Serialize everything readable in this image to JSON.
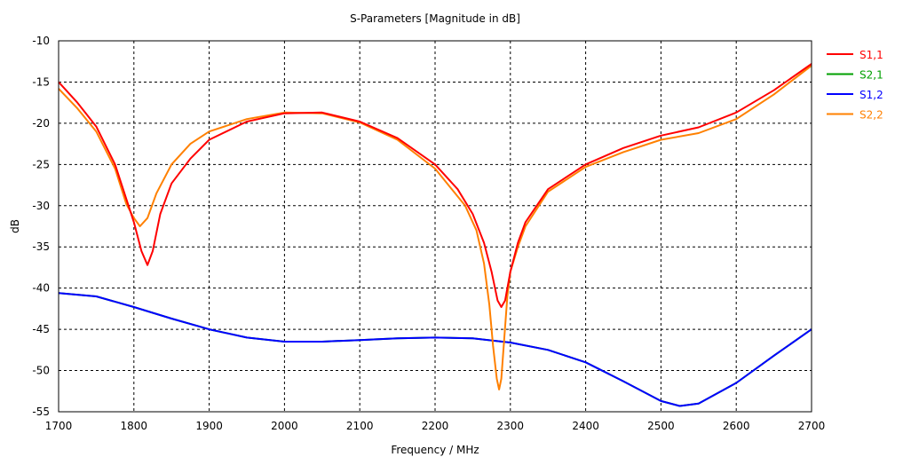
{
  "chart_data": {
    "type": "line",
    "title": "S-Parameters [Magnitude in dB]",
    "xlabel": "Frequency / MHz",
    "ylabel": "dB",
    "xlim": [
      1700,
      2700
    ],
    "ylim": [
      -55,
      -10
    ],
    "xticks": [
      1700,
      1800,
      1900,
      2000,
      2100,
      2200,
      2300,
      2400,
      2500,
      2600,
      2700
    ],
    "yticks": [
      -10,
      -15,
      -20,
      -25,
      -30,
      -35,
      -40,
      -45,
      -50,
      -55
    ],
    "grid": true,
    "legend_position": "right",
    "series": [
      {
        "name": "S2,1",
        "color": "#00a000",
        "x": [
          1700,
          1750,
          1800,
          1850,
          1900,
          1950,
          2000,
          2050,
          2100,
          2150,
          2200,
          2250,
          2300,
          2350,
          2400,
          2450,
          2500,
          2525,
          2550,
          2600,
          2650,
          2700
        ],
        "y": [
          -40.6,
          -41,
          -42.3,
          -43.7,
          -45,
          -46,
          -46.5,
          -46.5,
          -46.3,
          -46.1,
          -46,
          -46.1,
          -46.6,
          -47.5,
          -49,
          -51.3,
          -53.7,
          -54.3,
          -54,
          -51.5,
          -48.2,
          -45
        ]
      },
      {
        "name": "S1,2",
        "color": "#0000ff",
        "x": [
          1700,
          1750,
          1800,
          1850,
          1900,
          1950,
          2000,
          2050,
          2100,
          2150,
          2200,
          2250,
          2300,
          2350,
          2400,
          2450,
          2500,
          2525,
          2550,
          2600,
          2650,
          2700
        ],
        "y": [
          -40.6,
          -41,
          -42.3,
          -43.7,
          -45,
          -46,
          -46.5,
          -46.5,
          -46.3,
          -46.1,
          -46,
          -46.1,
          -46.6,
          -47.5,
          -49,
          -51.3,
          -53.7,
          -54.3,
          -54,
          -51.5,
          -48.2,
          -45
        ]
      },
      {
        "name": "S2,2",
        "color": "#ff8000",
        "x": [
          1700,
          1725,
          1750,
          1775,
          1790,
          1800,
          1808,
          1818,
          1830,
          1850,
          1875,
          1900,
          1950,
          2000,
          2050,
          2100,
          2150,
          2200,
          2240,
          2255,
          2265,
          2272,
          2277,
          2282,
          2285,
          2288,
          2292,
          2296,
          2300,
          2310,
          2320,
          2350,
          2400,
          2450,
          2500,
          2550,
          2600,
          2650,
          2700
        ],
        "y": [
          -15.8,
          -18.2,
          -21,
          -25.5,
          -29.8,
          -31.5,
          -32.5,
          -31.5,
          -28.5,
          -25,
          -22.5,
          -21,
          -19.5,
          -18.7,
          -18.8,
          -19.9,
          -22,
          -25.5,
          -30,
          -33,
          -37,
          -42,
          -47,
          -51,
          -52.3,
          -51,
          -46,
          -41,
          -38,
          -35,
          -32.5,
          -28.3,
          -25.3,
          -23.5,
          -22,
          -21.2,
          -19.5,
          -16.5,
          -13
        ]
      },
      {
        "name": "S1,1",
        "color": "#ff0000",
        "x": [
          1700,
          1725,
          1750,
          1775,
          1800,
          1810,
          1818,
          1825,
          1835,
          1850,
          1875,
          1900,
          1950,
          2000,
          2050,
          2100,
          2150,
          2200,
          2230,
          2250,
          2265,
          2275,
          2283,
          2288,
          2293,
          2300,
          2310,
          2320,
          2350,
          2400,
          2450,
          2500,
          2550,
          2600,
          2650,
          2700
        ],
        "y": [
          -15,
          -17.5,
          -20.4,
          -25,
          -32,
          -35.5,
          -37.2,
          -35.5,
          -31,
          -27.3,
          -24.3,
          -22,
          -19.8,
          -18.8,
          -18.7,
          -19.8,
          -21.8,
          -25,
          -28,
          -31,
          -34.5,
          -38,
          -41.5,
          -42.3,
          -41.5,
          -38,
          -34.5,
          -32,
          -28,
          -25,
          -23,
          -21.5,
          -20.5,
          -18.7,
          -16,
          -12.8
        ]
      }
    ]
  }
}
